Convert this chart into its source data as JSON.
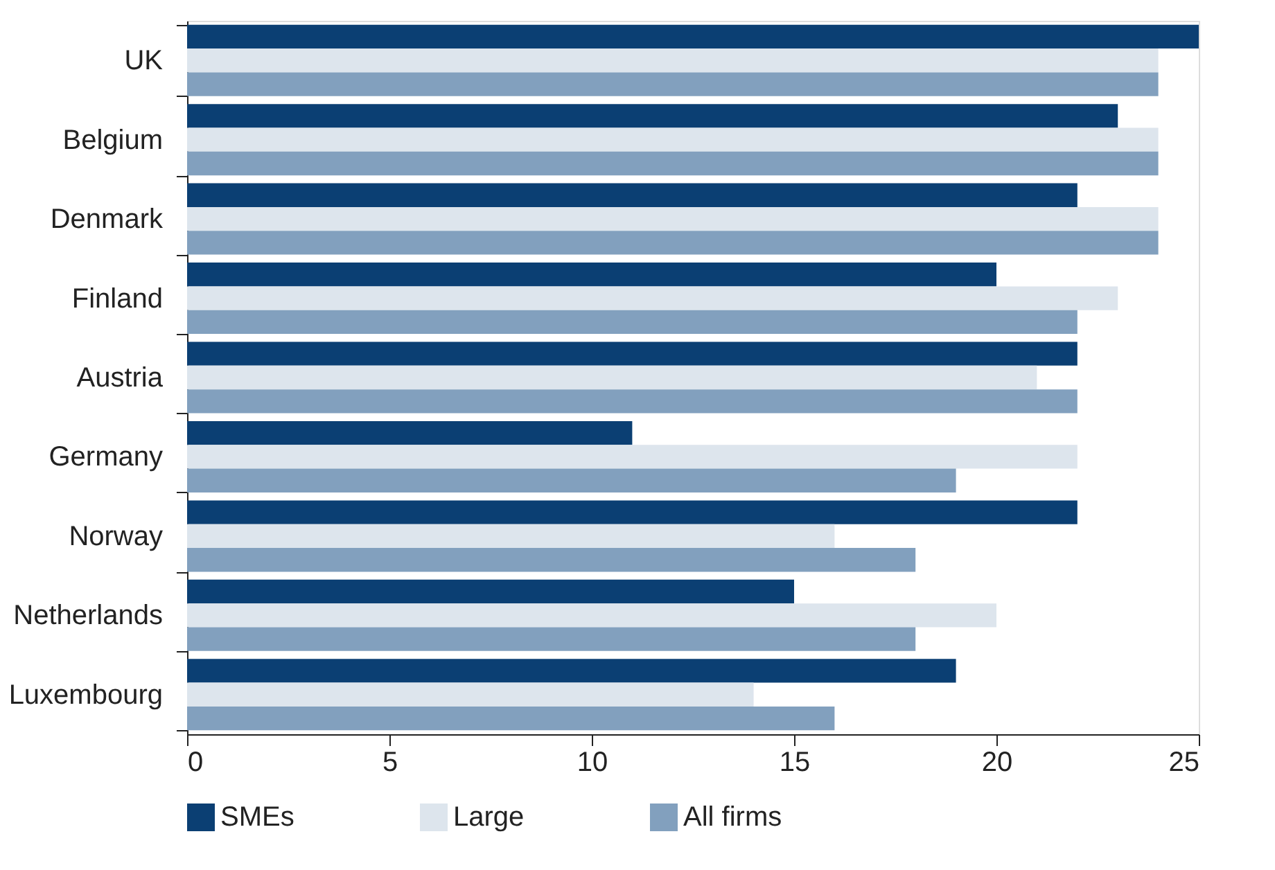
{
  "chart_data": {
    "type": "bar",
    "orientation": "horizontal",
    "categories": [
      "UK",
      "Belgium",
      "Denmark",
      "Finland",
      "Austria",
      "Germany",
      "Norway",
      "Netherlands",
      "Luxembourg"
    ],
    "series": [
      {
        "name": "SMEs",
        "color": "#0b3f73",
        "values": [
          25,
          23,
          22,
          20,
          22,
          11,
          22,
          15,
          19
        ]
      },
      {
        "name": "Large",
        "color": "#dde5ed",
        "values": [
          24,
          24,
          24,
          23,
          21,
          22,
          16,
          20,
          14
        ]
      },
      {
        "name": "All firms",
        "color": "#82a0be",
        "values": [
          24,
          24,
          24,
          22,
          22,
          19,
          18,
          18,
          16
        ]
      }
    ],
    "xlim": [
      0,
      25
    ],
    "xticks": [
      0,
      5,
      10,
      15,
      20,
      25
    ],
    "grid": false,
    "legend": "bottom"
  }
}
